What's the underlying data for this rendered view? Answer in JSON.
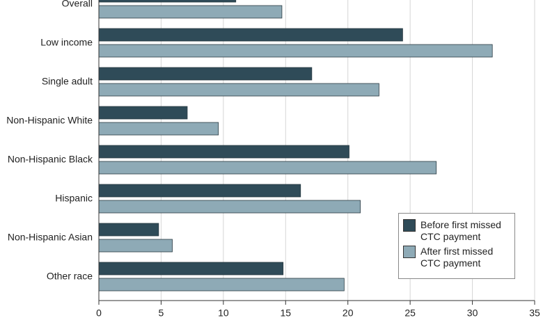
{
  "chart_data": {
    "type": "barh",
    "categories": [
      "Overall",
      "Low income",
      "Single adult",
      "Non-Hispanic White",
      "Non-Hispanic Black",
      "Hispanic",
      "Non-Hispanic Asian",
      "Other race"
    ],
    "series": [
      {
        "name": "Before first missed CTC payment",
        "color": "#2f4b58",
        "values": [
          11.0,
          24.4,
          17.1,
          7.1,
          20.1,
          16.2,
          4.8,
          14.8
        ]
      },
      {
        "name": "After first missed CTC payment",
        "color": "#8eaab6",
        "values": [
          14.7,
          31.6,
          22.5,
          9.6,
          27.1,
          21.0,
          5.9,
          19.7
        ]
      }
    ],
    "xlim": [
      0,
      35
    ],
    "xticks": [
      0,
      5,
      10,
      15,
      20,
      25,
      30,
      35
    ],
    "grid": true,
    "legend": "lower right"
  }
}
